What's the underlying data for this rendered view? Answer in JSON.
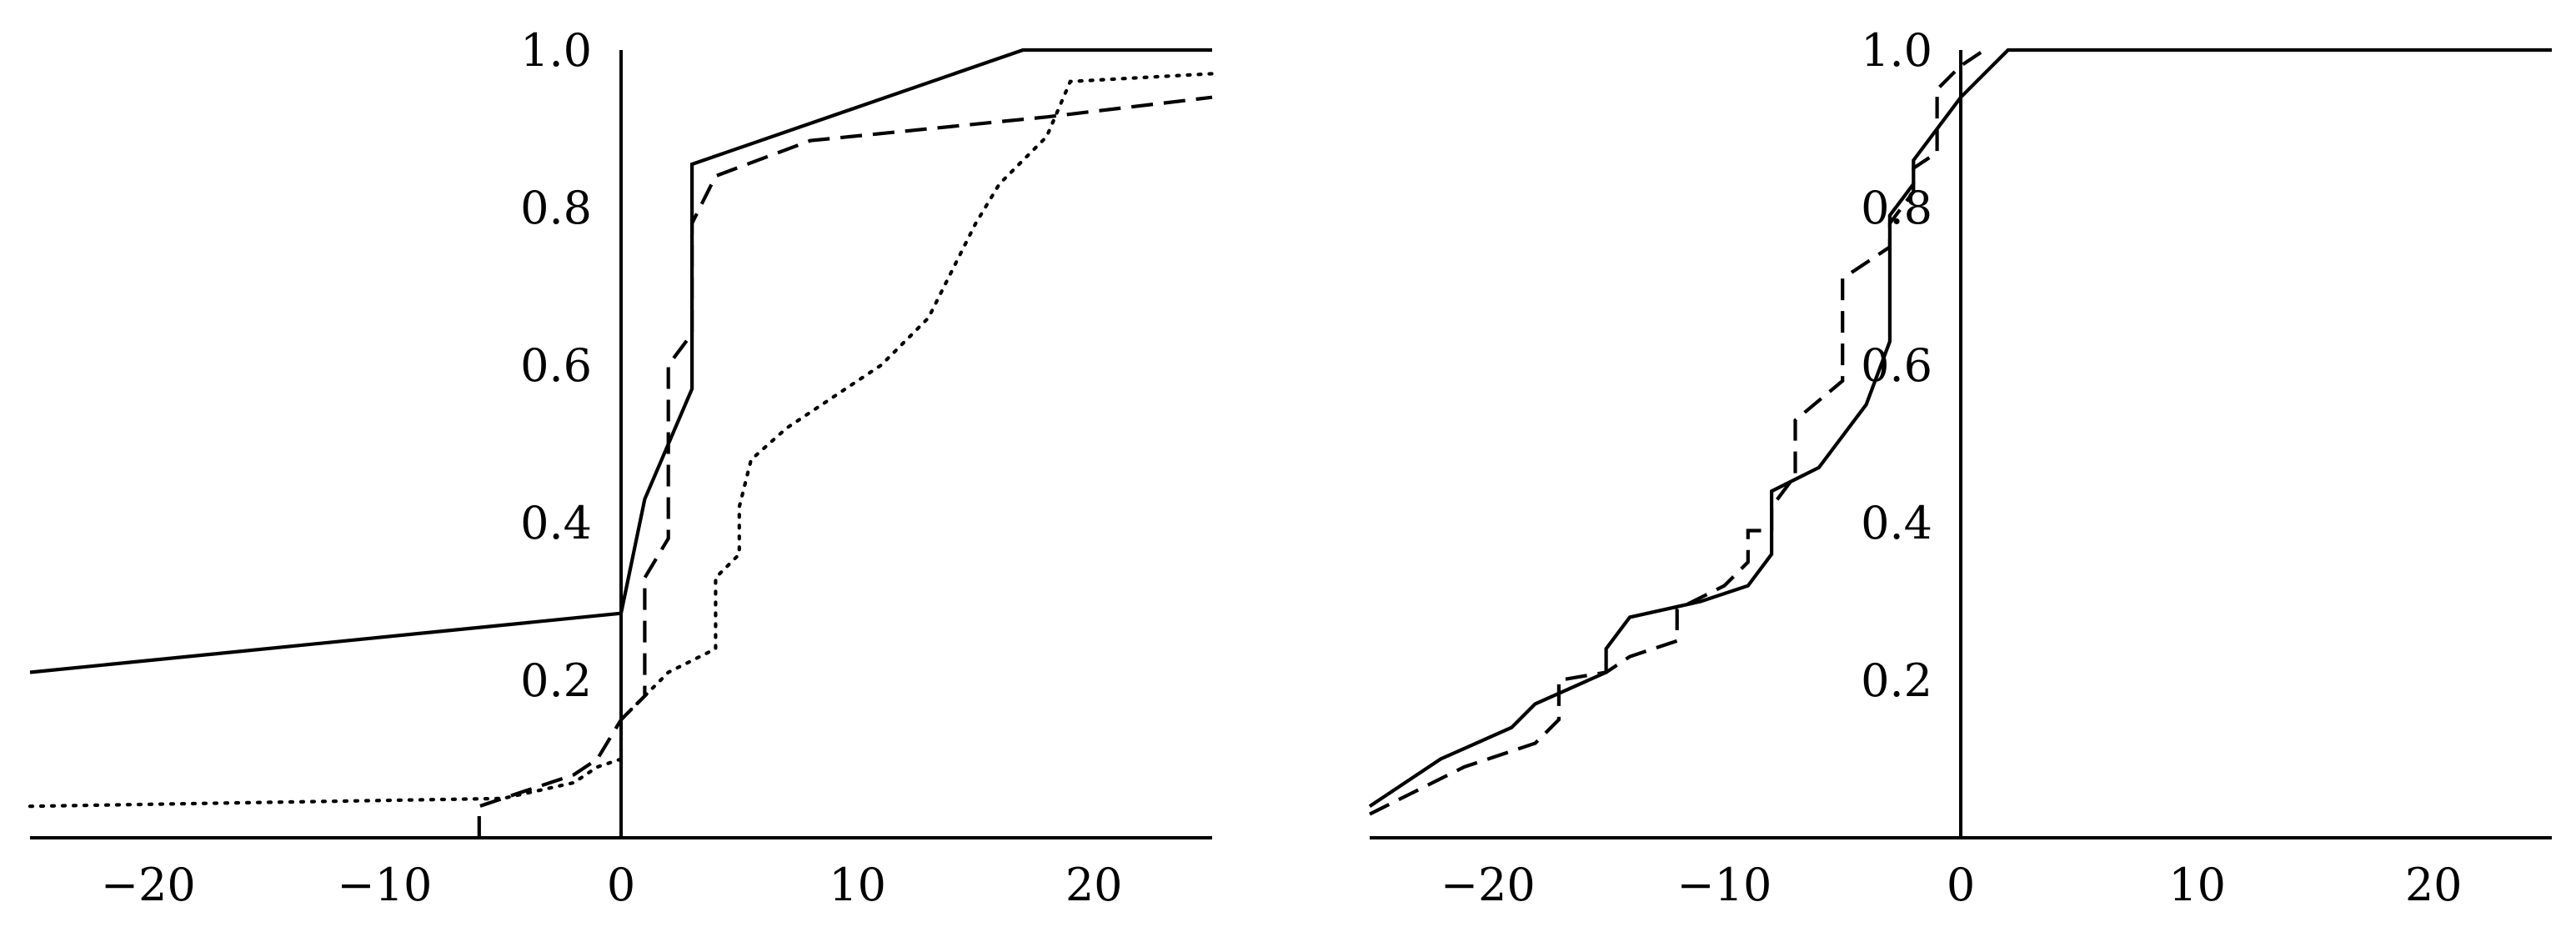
{
  "chart_data": [
    {
      "type": "line",
      "xlim": [
        -25,
        25
      ],
      "ylim": [
        0,
        1.0
      ],
      "x_ticks": [
        -20,
        -10,
        0,
        10,
        20
      ],
      "x_tick_labels": [
        "−20",
        "−10",
        "0",
        "10",
        "20"
      ],
      "y_ticks": [
        0.2,
        0.4,
        0.6,
        0.8,
        1.0
      ],
      "y_tick_labels": [
        "0.2",
        "0.4",
        "0.6",
        "0.8",
        "1.0"
      ],
      "grid": false,
      "legend": "none",
      "series": [
        {
          "style": "solid",
          "points": [
            [
              -25,
              0.21
            ],
            [
              0,
              0.285
            ],
            [
              1,
              0.43
            ],
            [
              3,
              0.57
            ],
            [
              3,
              0.855
            ],
            [
              17,
              1.0
            ],
            [
              25,
              1.0
            ]
          ]
        },
        {
          "style": "dashed",
          "points": [
            [
              -6,
              0.0
            ],
            [
              -6,
              0.04
            ],
            [
              -4,
              0.06
            ],
            [
              -2,
              0.08
            ],
            [
              -1,
              0.1
            ],
            [
              0,
              0.15
            ],
            [
              1,
              0.18
            ],
            [
              1,
              0.33
            ],
            [
              2,
              0.38
            ],
            [
              2,
              0.6
            ],
            [
              3,
              0.64
            ],
            [
              3,
              0.78
            ],
            [
              4,
              0.84
            ],
            [
              8,
              0.885
            ],
            [
              18,
              0.915
            ],
            [
              25,
              0.94
            ]
          ]
        },
        {
          "style": "dotted",
          "points": [
            [
              -25,
              0.04
            ],
            [
              -5,
              0.05
            ],
            [
              -2,
              0.07
            ],
            [
              -1,
              0.09
            ],
            [
              0,
              0.1
            ],
            [
              0,
              0.15
            ],
            [
              1,
              0.18
            ],
            [
              2,
              0.21
            ],
            [
              3,
              0.225
            ],
            [
              4,
              0.24
            ],
            [
              4,
              0.33
            ],
            [
              5,
              0.36
            ],
            [
              5,
              0.42
            ],
            [
              5.5,
              0.48
            ],
            [
              7,
              0.52
            ],
            [
              9,
              0.56
            ],
            [
              11,
              0.6
            ],
            [
              13,
              0.66
            ],
            [
              14,
              0.72
            ],
            [
              15,
              0.78
            ],
            [
              16,
              0.83
            ],
            [
              17,
              0.86
            ],
            [
              18,
              0.89
            ],
            [
              19,
              0.96
            ],
            [
              25,
              0.97
            ]
          ]
        }
      ]
    },
    {
      "type": "line",
      "xlim": [
        -25,
        25
      ],
      "ylim": [
        0,
        1.0
      ],
      "x_ticks": [
        -20,
        -10,
        0,
        10,
        20
      ],
      "x_tick_labels": [
        "−20",
        "−10",
        "0",
        "10",
        "20"
      ],
      "y_ticks": [
        0.2,
        0.4,
        0.6,
        0.8,
        1.0
      ],
      "y_tick_labels": [
        "0.2",
        "0.4",
        "0.6",
        "0.8",
        "1.0"
      ],
      "grid": false,
      "legend": "none",
      "series": [
        {
          "style": "solid",
          "points": [
            [
              -25,
              0.04
            ],
            [
              -22,
              0.1
            ],
            [
              -19,
              0.14
            ],
            [
              -18,
              0.17
            ],
            [
              -15,
              0.21
            ],
            [
              -15,
              0.24
            ],
            [
              -14,
              0.28
            ],
            [
              -11,
              0.3
            ],
            [
              -9,
              0.32
            ],
            [
              -8,
              0.36
            ],
            [
              -8,
              0.44
            ],
            [
              -6,
              0.47
            ],
            [
              -4,
              0.55
            ],
            [
              -3,
              0.63
            ],
            [
              -3,
              0.79
            ],
            [
              -2,
              0.83
            ],
            [
              -2,
              0.86
            ],
            [
              0,
              0.94
            ],
            [
              2,
              1.0
            ],
            [
              25,
              1.0
            ]
          ]
        },
        {
          "style": "dashed",
          "points": [
            [
              -25,
              0.03
            ],
            [
              -21,
              0.09
            ],
            [
              -18,
              0.12
            ],
            [
              -17,
              0.15
            ],
            [
              -17,
              0.2
            ],
            [
              -15,
              0.21
            ],
            [
              -14,
              0.23
            ],
            [
              -12,
              0.25
            ],
            [
              -12,
              0.29
            ],
            [
              -10,
              0.32
            ],
            [
              -9,
              0.35
            ],
            [
              -9,
              0.39
            ],
            [
              -8,
              0.39
            ],
            [
              -8,
              0.42
            ],
            [
              -7,
              0.46
            ],
            [
              -7,
              0.53
            ],
            [
              -5,
              0.58
            ],
            [
              -5,
              0.71
            ],
            [
              -3,
              0.75
            ],
            [
              -3,
              0.78
            ],
            [
              -2,
              0.82
            ],
            [
              -2,
              0.85
            ],
            [
              -1,
              0.87
            ],
            [
              -1,
              0.95
            ],
            [
              0,
              0.98
            ],
            [
              1,
              1.0
            ]
          ]
        }
      ]
    }
  ]
}
